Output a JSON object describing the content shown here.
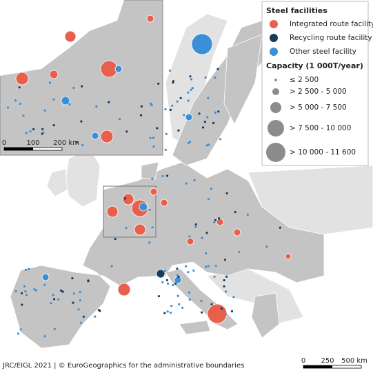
{
  "legend": {
    "title": "Steel facilities",
    "types": [
      {
        "label": "Integrated route facility",
        "color": "#e8604c"
      },
      {
        "label": "Recycling route facility",
        "color": "#1a3b5c"
      },
      {
        "label": "Other steel facility",
        "color": "#3a8fd6"
      }
    ],
    "capacity_title": "Capacity (1 000T/year)",
    "capacity_classes": [
      "≤ 2 500",
      "> 2 500 - 5 000",
      "> 5 000 - 7 500",
      "> 7 500 - 10 000",
      "> 10 000 - 11 600"
    ]
  },
  "inset_scale": {
    "labels": [
      "0",
      "100",
      "200 km"
    ]
  },
  "main_scale": {
    "labels": [
      "0",
      "250",
      "500 km"
    ]
  },
  "credit": "JRC/EIGL 2021 | © EuroGeographics for the administrative boundaries"
}
